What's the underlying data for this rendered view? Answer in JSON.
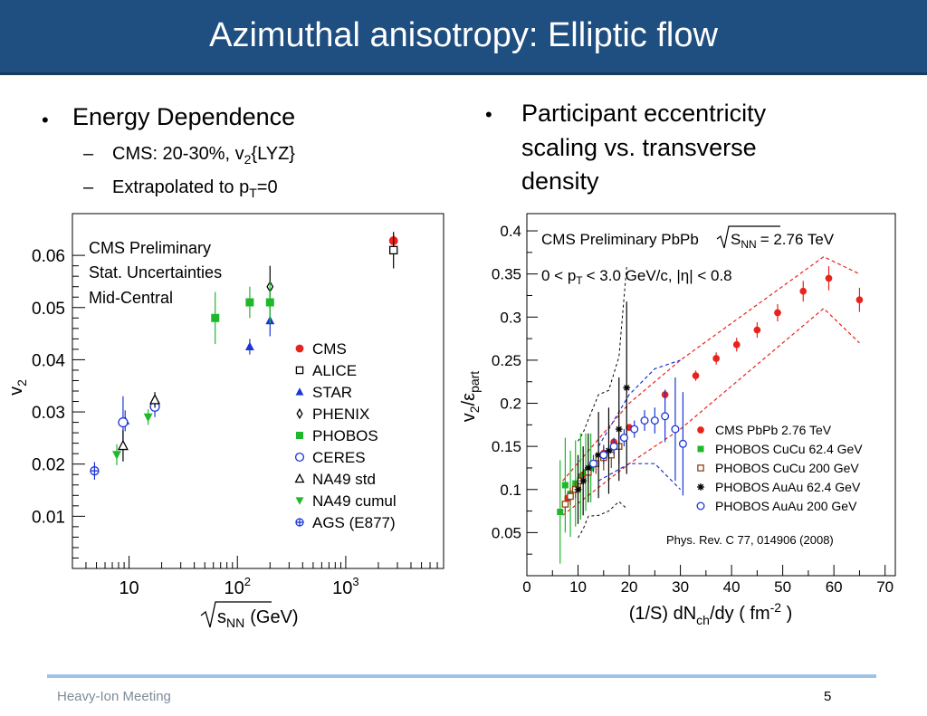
{
  "slide": {
    "title": "Azimuthal anisotropy: Elliptic flow",
    "left_bullets": {
      "main": "Energy Dependence",
      "sub1_pre": "CMS: 20-30%, v",
      "sub1_sub": "2",
      "sub1_post": "{LYZ}",
      "sub2_pre": "Extrapolated to p",
      "sub2_sub": "T",
      "sub2_post": "=0"
    },
    "right_bullets": {
      "line1": "Participant eccentricity",
      "line2": "scaling vs. transverse",
      "line3": "density"
    },
    "footer": {
      "left": "Heavy-Ion Meeting",
      "page": "5"
    }
  },
  "chart_data": [
    {
      "type": "scatter",
      "x_scale": "log",
      "xlim": [
        3,
        8000
      ],
      "ylim": [
        0,
        0.068
      ],
      "annotations": [
        "CMS  Preliminary",
        "Stat. Uncertainties",
        "Mid-Central"
      ],
      "xlabel_root": "s",
      "xlabel_sub": "NN",
      "xlabel_unit": "(GeV)",
      "ylabel_main": "v",
      "ylabel_sub": "2",
      "x_ticks": [
        {
          "value": 10,
          "base": "10",
          "exp": ""
        },
        {
          "value": 100,
          "base": "10",
          "exp": "2"
        },
        {
          "value": 1000,
          "base": "10",
          "exp": "3"
        }
      ],
      "y_ticks": [
        {
          "value": 0.01,
          "label": "0.01"
        },
        {
          "value": 0.02,
          "label": "0.02"
        },
        {
          "value": 0.03,
          "label": "0.03"
        },
        {
          "value": 0.04,
          "label": "0.04"
        },
        {
          "value": 0.05,
          "label": "0.05"
        },
        {
          "value": 0.06,
          "label": "0.06"
        }
      ],
      "legend_position": "right",
      "series": [
        {
          "name": "CMS",
          "marker": "circle-filled",
          "color": "#e8221c",
          "points": [
            {
              "x": 2760,
              "y": 0.0628,
              "err": 0.0013
            }
          ]
        },
        {
          "name": "ALICE",
          "marker": "square-open",
          "color": "#000000",
          "points": [
            {
              "x": 2760,
              "y": 0.061,
              "err": 0.0035
            }
          ]
        },
        {
          "name": "STAR",
          "marker": "triangle-filled",
          "color": "#1a35d6",
          "points": [
            {
              "x": 130,
              "y": 0.0425,
              "err": 0.0015
            },
            {
              "x": 200,
              "y": 0.0475,
              "err": 0.003
            },
            {
              "x": 9.2,
              "y": 0.0283,
              "err": 0.002
            }
          ]
        },
        {
          "name": "PHENIX",
          "marker": "diamond-open",
          "color": "#000000",
          "points": [
            {
              "x": 200,
              "y": 0.054,
              "err": 0.004
            }
          ]
        },
        {
          "name": "PHOBOS",
          "marker": "square-filled",
          "color": "#1fb82a",
          "points": [
            {
              "x": 62.4,
              "y": 0.048,
              "err": 0.005
            },
            {
              "x": 130,
              "y": 0.051,
              "err": 0.003
            },
            {
              "x": 200,
              "y": 0.051,
              "err": 0.004
            }
          ]
        },
        {
          "name": "CERES",
          "marker": "circle-open",
          "color": "#1a35d6",
          "points": [
            {
              "x": 17.3,
              "y": 0.031,
              "err": 0.002
            },
            {
              "x": 8.8,
              "y": 0.028,
              "err": 0.005
            }
          ]
        },
        {
          "name": "NA49 std",
          "marker": "triangle-open",
          "color": "#000000",
          "points": [
            {
              "x": 8.8,
              "y": 0.0235,
              "err": 0.003
            },
            {
              "x": 17.3,
              "y": 0.0323,
              "err": 0.0015
            }
          ]
        },
        {
          "name": "NA49 cumul",
          "marker": "triangle-down-filled",
          "color": "#1fb82a",
          "points": [
            {
              "x": 7.7,
              "y": 0.0218,
              "err": 0.002
            },
            {
              "x": 15,
              "y": 0.029,
              "err": 0.0015
            }
          ]
        },
        {
          "name": "AGS (E877)",
          "marker": "cross-circle",
          "color": "#1a35d6",
          "points": [
            {
              "x": 4.8,
              "y": 0.0187,
              "err": 0.0017
            }
          ]
        }
      ]
    },
    {
      "type": "scatter",
      "xlim": [
        0,
        72
      ],
      "ylim": [
        0,
        0.42
      ],
      "annotations": {
        "l1_pre": "CMS Preliminary  PbPb",
        "l1_root": "S",
        "l1_sub": "NN",
        "l1_post": "= 2.76 TeV",
        "l2_pre": "0 < p",
        "l2_sub": "T",
        "l2_post": "< 3.0 GeV/c,  |η| < 0.8",
        "ref": "Phys. Rev. C 77, 014906 (2008)"
      },
      "xlabel": {
        "pre": "(1/S) dN",
        "sub": "ch",
        "mid": "/dy ( fm",
        "sup": "-2",
        "post": " )"
      },
      "ylabel": {
        "a": "v",
        "a_sub": "2",
        "slash": "/ε",
        "b_sub": "part"
      },
      "x_ticks": [
        0,
        10,
        20,
        30,
        40,
        50,
        60,
        70
      ],
      "y_ticks": [
        {
          "value": 0.05,
          "label": "0.05"
        },
        {
          "value": 0.1,
          "label": "0.1"
        },
        {
          "value": 0.15,
          "label": "0.15"
        },
        {
          "value": 0.2,
          "label": "0.2"
        },
        {
          "value": 0.25,
          "label": "0.25"
        },
        {
          "value": 0.3,
          "label": "0.3"
        },
        {
          "value": 0.35,
          "label": "0.35"
        },
        {
          "value": 0.4,
          "label": "0.4"
        }
      ],
      "legend_position": "bottom-right",
      "series": [
        {
          "name": "CMS PbPb  2.76 TeV",
          "marker": "circle-filled",
          "color": "#e8221c",
          "x": [
            8,
            9.5,
            11,
            13,
            15,
            17,
            20,
            27,
            33,
            37,
            41,
            45,
            49,
            54,
            59,
            65
          ],
          "y": [
            0.09,
            0.103,
            0.117,
            0.13,
            0.142,
            0.155,
            0.172,
            0.21,
            0.232,
            0.252,
            0.268,
            0.285,
            0.305,
            0.33,
            0.345,
            0.32
          ],
          "err": [
            0.003,
            0.003,
            0.003,
            0.003,
            0.003,
            0.004,
            0.004,
            0.006,
            0.006,
            0.007,
            0.008,
            0.009,
            0.01,
            0.012,
            0.014,
            0.014
          ],
          "syst_band": {
            "x": [
              7,
              20,
              30,
              58,
              65
            ],
            "lower": [
              0.07,
              0.13,
              0.17,
              0.31,
              0.27
            ],
            "upper": [
              0.11,
              0.2,
              0.25,
              0.37,
              0.35
            ]
          }
        },
        {
          "name": "PHOBOS CuCu 62.4 GeV",
          "marker": "square-filled",
          "color": "#1fb82a",
          "x": [
            6.5,
            7.5,
            8.5,
            9.5,
            10.5,
            11.5,
            12.5
          ],
          "y": [
            0.074,
            0.105,
            0.095,
            0.107,
            0.115,
            0.12,
            0.125
          ],
          "err": [
            0.06,
            0.055,
            0.05,
            0.05,
            0.05,
            0.045,
            0.04
          ]
        },
        {
          "name": "PHOBOS CuCu 200 GeV",
          "marker": "square-open",
          "color": "#8b4513",
          "x": [
            7.5,
            8.5,
            9.5,
            10.5,
            12,
            13.5,
            15,
            16.5,
            18
          ],
          "y": [
            0.083,
            0.092,
            0.1,
            0.11,
            0.12,
            0.13,
            0.137,
            0.14,
            0.15
          ],
          "err": [
            0.01,
            0.01,
            0.01,
            0.01,
            0.012,
            0.012,
            0.015,
            0.015,
            0.02
          ]
        },
        {
          "name": "PHOBOS AuAu 62.4 GeV",
          "marker": "star",
          "color": "#000000",
          "x": [
            10,
            11,
            12,
            14,
            16,
            18,
            19.5
          ],
          "y": [
            0.1,
            0.11,
            0.125,
            0.14,
            0.145,
            0.17,
            0.218
          ],
          "err": [
            0.04,
            0.04,
            0.04,
            0.05,
            0.05,
            0.06,
            0.1
          ]
        },
        {
          "name": "PHOBOS AuAu 200 GeV",
          "marker": "circle-open",
          "color": "#1a35d6",
          "x": [
            13,
            15,
            17,
            19,
            21,
            23,
            25,
            27,
            29,
            30.5
          ],
          "y": [
            0.13,
            0.14,
            0.15,
            0.16,
            0.17,
            0.18,
            0.18,
            0.185,
            0.17,
            0.153
          ],
          "err": [
            0.01,
            0.01,
            0.01,
            0.01,
            0.01,
            0.012,
            0.015,
            0.03,
            0.06,
            0.06
          ],
          "syst_band": {
            "x": [
              14,
              20,
              25,
              30
            ],
            "lower": [
              0.11,
              0.13,
              0.13,
              0.1
            ],
            "upper": [
              0.15,
              0.21,
              0.24,
              0.25
            ]
          }
        }
      ]
    }
  ]
}
